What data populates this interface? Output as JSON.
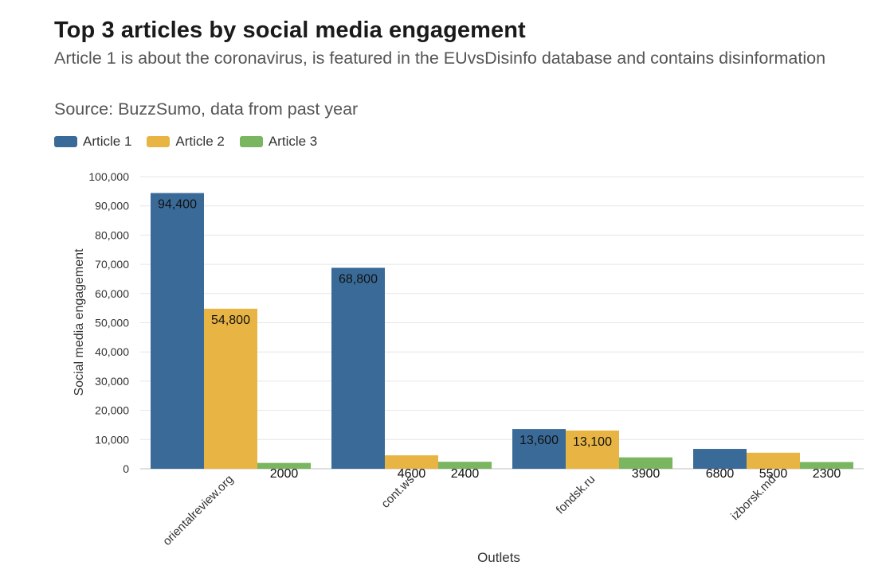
{
  "chart_data": {
    "type": "bar",
    "title": "Top 3 articles by social media engagement",
    "subtitle": "Article 1 is about the coronavirus, is featured in the EUvsDisinfo database and contains disinformation",
    "source": "Source: BuzzSumo, data from past year",
    "xlabel": "Outlets",
    "ylabel": "Social media engagement",
    "ylim": [
      0,
      100000
    ],
    "yticks": [
      0,
      10000,
      20000,
      30000,
      40000,
      50000,
      60000,
      70000,
      80000,
      90000,
      100000
    ],
    "ytick_labels": [
      "0",
      "10,000",
      "20,000",
      "30,000",
      "40,000",
      "50,000",
      "60,000",
      "70,000",
      "80,000",
      "90,000",
      "100,000"
    ],
    "categories": [
      "orientalreview.org",
      "cont.ws",
      "fondsk.ru",
      "izborsk.md"
    ],
    "series": [
      {
        "name": "Article 1",
        "color": "#3a6b98",
        "values": [
          94400,
          68800,
          13600,
          6800
        ],
        "labels": [
          "94,400",
          "68,800",
          "13,600",
          "6800"
        ]
      },
      {
        "name": "Article 2",
        "color": "#e8b545",
        "values": [
          54800,
          4600,
          13100,
          5500
        ],
        "labels": [
          "54,800",
          "4600",
          "13,100",
          "5500"
        ]
      },
      {
        "name": "Article 3",
        "color": "#7ab560",
        "values": [
          2000,
          2400,
          3900,
          2300
        ],
        "labels": [
          "2000",
          "2400",
          "3900",
          "2300"
        ]
      }
    ],
    "legend_position": "top-left",
    "grid": true
  }
}
